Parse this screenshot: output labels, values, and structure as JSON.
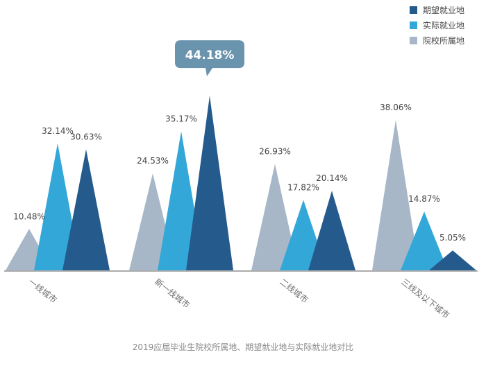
{
  "chart_data": {
    "type": "bar",
    "mark_shape": "triangle",
    "categories": [
      "一线城市",
      "新一线城市",
      "二线城市",
      "三线及以下城市"
    ],
    "series": [
      {
        "name": "院校所属地",
        "color": "#a7b7c8",
        "values": [
          10.48,
          24.53,
          26.93,
          38.06
        ],
        "labels": [
          "10.48%",
          "24.53%",
          "26.93%",
          "38.06%"
        ]
      },
      {
        "name": "实际就业地",
        "color": "#33a8d8",
        "values": [
          32.14,
          35.17,
          17.82,
          14.87
        ],
        "labels": [
          "32.14%",
          "35.17%",
          "17.82%",
          "14.87%"
        ]
      },
      {
        "name": "期望就业地",
        "color": "#255b8c",
        "values": [
          30.63,
          44.18,
          20.14,
          5.05
        ],
        "labels": [
          "30.63%",
          "44.18%",
          "20.14%",
          "5.05%"
        ]
      }
    ],
    "legend_order": [
      "期望就业地",
      "实际就业地",
      "院校所属地"
    ],
    "legend_position": "top-right",
    "highlight": {
      "label": "44.18%",
      "category": "新一线城市",
      "series": "期望就业地",
      "color": "#6a93ad"
    },
    "caption": "2019应届毕业生院校所属地、期望就业地与实际就业地对比",
    "ylim": [
      0,
      46
    ],
    "grid": false,
    "axis_color": "#7a7a7a"
  }
}
